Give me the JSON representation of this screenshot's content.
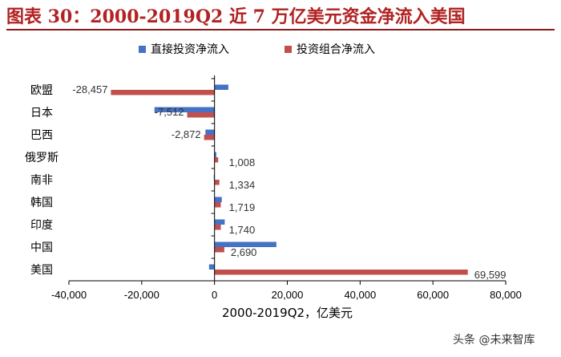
{
  "header": {
    "figure_title": "图表 30：2000-2019Q2 近 7 万亿美元资金净流入美国"
  },
  "footer": {
    "watermark": "头条 @未来智库"
  },
  "colors": {
    "fdi": "#4472c4",
    "portfolio": "#c0504d",
    "title": "#b22222"
  },
  "chart_data": {
    "type": "bar",
    "orientation": "horizontal",
    "categories": [
      "欧盟",
      "日本",
      "巴西",
      "俄罗斯",
      "南非",
      "韩国",
      "印度",
      "中国",
      "美国"
    ],
    "series": [
      {
        "name": "直接投资净流入",
        "values": [
          3800,
          -16500,
          -2500,
          500,
          -200,
          2000,
          2800,
          17000,
          -1500
        ]
      },
      {
        "name": "投资组合净流入",
        "values": [
          -28457,
          -7512,
          -2872,
          1008,
          1334,
          1719,
          1740,
          2690,
          69599
        ]
      }
    ],
    "data_labels": [
      "-28,457",
      "-7,512",
      "-2,872",
      "1,008",
      "1,334",
      "1,719",
      "1,740",
      "2,690",
      "69,599"
    ],
    "xlabel": "2000-2019Q2，亿美元",
    "xlim": [
      -40000,
      80000
    ],
    "x_ticks": [
      -40000,
      -20000,
      0,
      20000,
      40000,
      60000,
      80000
    ],
    "x_tick_labels": [
      "-40,000",
      "-20,000",
      "0",
      "20,000",
      "40,000",
      "60,000",
      "80,000"
    ],
    "legend_position": "top",
    "grid": false
  }
}
